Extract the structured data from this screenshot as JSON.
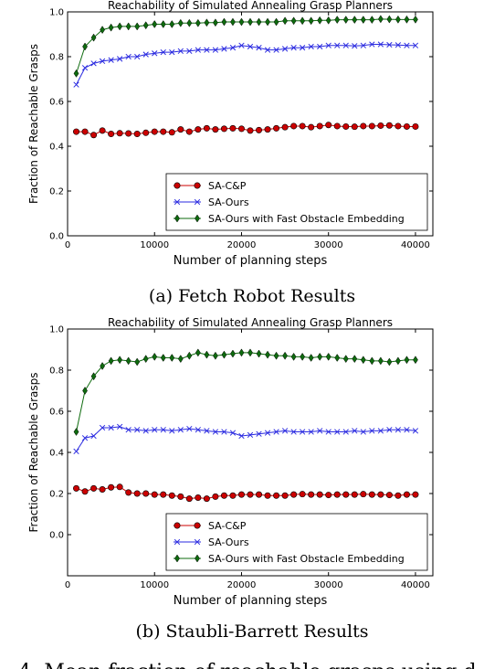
{
  "chart_data": [
    {
      "type": "line",
      "title": "Reachability of Simulated Annealing Grasp Planners",
      "caption": "(a) Fetch Robot Results",
      "xlabel": "Number of planning steps",
      "ylabel": "Fraction of Reachable Grasps",
      "xlim": [
        0,
        42000
      ],
      "ylim": [
        0.0,
        1.0
      ],
      "xticks": [
        0,
        10000,
        20000,
        30000,
        40000
      ],
      "yticks": [
        0.0,
        0.2,
        0.4,
        0.6,
        0.8,
        1.0
      ],
      "ytick_labels": [
        "0.0",
        "0.2",
        "0.4",
        "0.6",
        "0.8",
        "1.0"
      ],
      "grid": false,
      "legend_position": "bottom-right",
      "x": [
        1000,
        2000,
        3000,
        4000,
        5000,
        6000,
        7000,
        8000,
        9000,
        10000,
        11000,
        12000,
        13000,
        14000,
        15000,
        16000,
        17000,
        18000,
        19000,
        20000,
        21000,
        22000,
        23000,
        24000,
        25000,
        26000,
        27000,
        28000,
        29000,
        30000,
        31000,
        32000,
        33000,
        34000,
        35000,
        36000,
        37000,
        38000,
        39000,
        40000
      ],
      "series": [
        {
          "name": "SA-C&P",
          "color": "#cc0000",
          "marker": "circle",
          "values": [
            0.465,
            0.465,
            0.45,
            0.47,
            0.455,
            0.458,
            0.457,
            0.455,
            0.46,
            0.465,
            0.465,
            0.462,
            0.475,
            0.465,
            0.475,
            0.48,
            0.475,
            0.478,
            0.48,
            0.478,
            0.47,
            0.472,
            0.475,
            0.48,
            0.485,
            0.49,
            0.49,
            0.485,
            0.49,
            0.495,
            0.49,
            0.488,
            0.487,
            0.49,
            0.49,
            0.492,
            0.493,
            0.49,
            0.488,
            0.488
          ]
        },
        {
          "name": "SA-Ours",
          "color": "#2a2ae0",
          "marker": "x",
          "values": [
            0.675,
            0.75,
            0.77,
            0.78,
            0.785,
            0.79,
            0.8,
            0.8,
            0.81,
            0.815,
            0.82,
            0.82,
            0.825,
            0.825,
            0.83,
            0.83,
            0.83,
            0.835,
            0.84,
            0.85,
            0.845,
            0.84,
            0.83,
            0.83,
            0.835,
            0.84,
            0.84,
            0.845,
            0.845,
            0.85,
            0.85,
            0.85,
            0.848,
            0.85,
            0.855,
            0.855,
            0.853,
            0.852,
            0.85,
            0.85
          ]
        },
        {
          "name": "SA-Ours with Fast Obstacle Embedding",
          "color": "#0e6b0e",
          "marker": "diamond",
          "values": [
            0.725,
            0.845,
            0.885,
            0.92,
            0.93,
            0.935,
            0.935,
            0.935,
            0.94,
            0.945,
            0.945,
            0.945,
            0.95,
            0.95,
            0.95,
            0.952,
            0.952,
            0.955,
            0.955,
            0.955,
            0.955,
            0.955,
            0.955,
            0.955,
            0.96,
            0.96,
            0.96,
            0.96,
            0.962,
            0.962,
            0.965,
            0.965,
            0.965,
            0.965,
            0.965,
            0.968,
            0.967,
            0.966,
            0.966,
            0.966
          ]
        }
      ]
    },
    {
      "type": "line",
      "title": "Reachability of Simulated Annealing Grasp Planners",
      "caption": "(b) Staubli-Barrett Results",
      "xlabel": "Number of planning steps",
      "ylabel": "Fraction of Reachable Grasps",
      "xlim": [
        0,
        42000
      ],
      "ylim": [
        -0.2,
        1.0
      ],
      "xticks": [
        0,
        10000,
        20000,
        30000,
        40000
      ],
      "yticks": [
        0.0,
        0.2,
        0.4,
        0.6,
        0.8,
        1.0
      ],
      "ytick_labels": [
        "0.0",
        "0.2",
        "0.4",
        "0.6",
        "0.8",
        "1.0"
      ],
      "grid": false,
      "legend_position": "bottom-right",
      "x": [
        1000,
        2000,
        3000,
        4000,
        5000,
        6000,
        7000,
        8000,
        9000,
        10000,
        11000,
        12000,
        13000,
        14000,
        15000,
        16000,
        17000,
        18000,
        19000,
        20000,
        21000,
        22000,
        23000,
        24000,
        25000,
        26000,
        27000,
        28000,
        29000,
        30000,
        31000,
        32000,
        33000,
        34000,
        35000,
        36000,
        37000,
        38000,
        39000,
        40000
      ],
      "series": [
        {
          "name": "SA-C&P",
          "color": "#cc0000",
          "marker": "circle",
          "values": [
            0.225,
            0.21,
            0.225,
            0.22,
            0.23,
            0.232,
            0.205,
            0.2,
            0.2,
            0.195,
            0.195,
            0.19,
            0.185,
            0.175,
            0.18,
            0.175,
            0.185,
            0.19,
            0.19,
            0.195,
            0.195,
            0.195,
            0.19,
            0.19,
            0.19,
            0.195,
            0.197,
            0.195,
            0.195,
            0.193,
            0.195,
            0.195,
            0.195,
            0.197,
            0.195,
            0.195,
            0.193,
            0.19,
            0.195,
            0.195
          ]
        },
        {
          "name": "SA-Ours",
          "color": "#2a2ae0",
          "marker": "x",
          "values": [
            0.405,
            0.47,
            0.48,
            0.52,
            0.52,
            0.525,
            0.51,
            0.51,
            0.505,
            0.51,
            0.51,
            0.505,
            0.51,
            0.515,
            0.51,
            0.505,
            0.5,
            0.5,
            0.495,
            0.48,
            0.485,
            0.49,
            0.495,
            0.5,
            0.505,
            0.5,
            0.5,
            0.5,
            0.505,
            0.5,
            0.5,
            0.5,
            0.505,
            0.5,
            0.505,
            0.505,
            0.51,
            0.51,
            0.51,
            0.505
          ]
        },
        {
          "name": "SA-Ours with Fast Obstacle Embedding",
          "color": "#0e6b0e",
          "marker": "diamond",
          "values": [
            0.5,
            0.7,
            0.77,
            0.82,
            0.845,
            0.85,
            0.845,
            0.84,
            0.855,
            0.865,
            0.86,
            0.86,
            0.855,
            0.87,
            0.885,
            0.875,
            0.87,
            0.875,
            0.88,
            0.885,
            0.885,
            0.88,
            0.875,
            0.87,
            0.87,
            0.865,
            0.865,
            0.86,
            0.865,
            0.865,
            0.86,
            0.855,
            0.855,
            0.85,
            0.845,
            0.845,
            0.84,
            0.845,
            0.85,
            0.85
          ]
        }
      ]
    }
  ],
  "bottom_text": "4: Mean fraction of reachable grasps using d"
}
